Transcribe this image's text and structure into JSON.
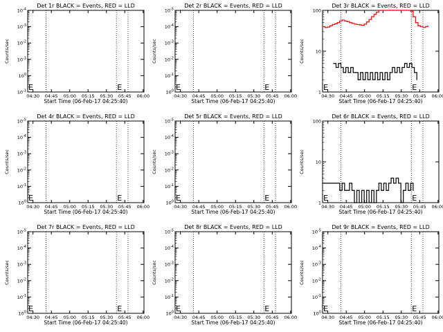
{
  "figure": {
    "x_tick_labels": [
      "04:30",
      "04:45",
      "05:00",
      "05:15",
      "05:30",
      "05:45",
      "06:00"
    ],
    "x_axis_label": "Start Time (06-Feb-17 04:25:40)",
    "y_axis_label": "Counts/sec",
    "marker_label": "E",
    "colors": {
      "events": "#000000",
      "lld": "#ff0000",
      "axes": "#000000",
      "background": "#ffffff"
    }
  },
  "chart_data": [
    {
      "type": "line",
      "title": "Det 1r BLACK = Events, RED = LLD",
      "ylabel": "Counts/sec",
      "y_scale": "log",
      "yticks": [
        {
          "base": "10",
          "exp": "-1"
        },
        {
          "base": "10",
          "exp": "0"
        },
        {
          "base": "10",
          "exp": "-1"
        },
        {
          "base": "10",
          "exp": "-2"
        },
        {
          "base": "10",
          "exp": "-3"
        },
        {
          "base": "10",
          "exp": "-4"
        }
      ],
      "ylim_decades": 6,
      "vlines_minutes": [
        15,
        72.5,
        82
      ],
      "series": [],
      "marker_visible": true
    },
    {
      "type": "line",
      "title": "Det 2r BLACK = Events, RED = LLD",
      "ylabel": "Counts/sec",
      "y_scale": "log",
      "yticks": [
        {
          "base": "10",
          "exp": "0"
        },
        {
          "base": "10",
          "exp": "-1"
        },
        {
          "base": "10",
          "exp": "-2"
        },
        {
          "base": "10",
          "exp": "-3"
        },
        {
          "base": "10",
          "exp": "-4"
        },
        {
          "base": "10",
          "exp": "-5"
        }
      ],
      "ylim_decades": 6,
      "vlines_minutes": [
        15,
        72.5,
        82
      ],
      "series": [],
      "marker_visible": true
    },
    {
      "type": "line",
      "title": "Det 3r BLACK = Events, RED = LLD",
      "ylabel": "Counts/sec",
      "y_scale": "log",
      "yticks": [
        {
          "base": "1",
          "exp": ""
        },
        {
          "base": "10",
          "exp": ""
        },
        {
          "base": "100",
          "exp": ""
        }
      ],
      "ylim": [
        1,
        100
      ],
      "vlines_minutes": [
        15,
        72.5,
        82
      ],
      "series": [
        {
          "color": "#ff0000",
          "x_minutes": [
            0,
            2,
            4,
            6,
            8,
            10,
            12,
            14,
            16,
            18,
            20,
            22,
            24,
            26,
            28,
            30,
            32,
            34,
            36,
            38,
            40,
            42,
            44,
            46,
            48,
            50,
            52,
            54,
            56,
            58,
            60,
            62,
            64,
            66,
            68,
            70,
            72,
            74,
            76,
            78,
            80,
            82,
            84,
            86
          ],
          "values": [
            40,
            38,
            39,
            42,
            45,
            47,
            50,
            55,
            58,
            55,
            53,
            50,
            48,
            46,
            45,
            44,
            43,
            46,
            52,
            60,
            70,
            80,
            90,
            100,
            110,
            118,
            118,
            116,
            114,
            112,
            110,
            108,
            105,
            110,
            115,
            115,
            95,
            70,
            50,
            42,
            40,
            38,
            40,
            42
          ]
        },
        {
          "color": "#000000",
          "x_minutes": [
            9,
            11,
            13,
            15,
            17,
            19,
            21,
            23,
            25,
            27,
            29,
            31,
            33,
            35,
            37,
            39,
            41,
            43,
            45,
            47,
            49,
            51,
            53,
            55,
            57,
            59,
            61,
            63,
            65,
            67,
            69,
            71,
            73,
            75,
            77
          ],
          "values": [
            5,
            4,
            5,
            4,
            3,
            4,
            3,
            4,
            3,
            3,
            2,
            3,
            2,
            3,
            2,
            3,
            2,
            3,
            2,
            3,
            2,
            3,
            2,
            3,
            4,
            3,
            4,
            3,
            4,
            5,
            4,
            5,
            4,
            3,
            2
          ]
        }
      ],
      "marker_visible": true
    },
    {
      "type": "line",
      "title": "Det 4r BLACK = Events, RED = LLD",
      "ylabel": "Counts/sec",
      "y_scale": "log",
      "yticks": [
        {
          "base": "10",
          "exp": "0"
        },
        {
          "base": "10",
          "exp": "-1"
        },
        {
          "base": "10",
          "exp": "-2"
        },
        {
          "base": "10",
          "exp": "-3"
        },
        {
          "base": "10",
          "exp": "-4"
        },
        {
          "base": "10",
          "exp": "-5"
        }
      ],
      "ylim_decades": 6,
      "vlines_minutes": [
        15,
        72.5,
        82
      ],
      "series": [],
      "marker_visible": true
    },
    {
      "type": "line",
      "title": "Det 5r BLACK = Events, RED = LLD",
      "ylabel": "Counts/sec",
      "y_scale": "log",
      "yticks": [
        {
          "base": "10",
          "exp": "0"
        },
        {
          "base": "10",
          "exp": "-1"
        },
        {
          "base": "10",
          "exp": "-2"
        },
        {
          "base": "10",
          "exp": "-3"
        },
        {
          "base": "10",
          "exp": "-4"
        },
        {
          "base": "10",
          "exp": "-5"
        }
      ],
      "ylim_decades": 6,
      "vlines_minutes": [
        15,
        72.5,
        82
      ],
      "series": [],
      "marker_visible": true
    },
    {
      "type": "line",
      "title": "Det 6r BLACK = Events, RED = LLD",
      "ylabel": "Counts/sec",
      "y_scale": "log",
      "yticks": [
        {
          "base": "1",
          "exp": ""
        },
        {
          "base": "10",
          "exp": ""
        },
        {
          "base": "100",
          "exp": ""
        }
      ],
      "ylim": [
        1,
        100
      ],
      "vlines_minutes": [
        15,
        72.5,
        82
      ],
      "series": [
        {
          "color": "#000000",
          "x_minutes": [
            0,
            2,
            4,
            6,
            8,
            10,
            12,
            14,
            16,
            18,
            20,
            22,
            24,
            26,
            28,
            30,
            32,
            34,
            36,
            38,
            40,
            42,
            44,
            46,
            48,
            50,
            52,
            54,
            56,
            58,
            60,
            62,
            64,
            66,
            68,
            70,
            72,
            74
          ],
          "values": [
            3,
            3,
            3,
            3,
            3,
            3,
            3,
            2,
            3,
            2,
            2,
            3,
            2,
            1,
            2,
            1,
            2,
            1,
            2,
            1,
            2,
            1,
            2,
            3,
            2,
            3,
            2,
            3,
            4,
            3,
            4,
            3,
            1,
            2,
            3,
            2,
            3,
            2
          ]
        }
      ],
      "marker_visible": true
    },
    {
      "type": "line",
      "title": "Det 7r BLACK = Events, RED = LLD",
      "ylabel": "Counts/sec",
      "y_scale": "log",
      "yticks": [
        {
          "base": "10",
          "exp": "0"
        },
        {
          "base": "10",
          "exp": "-1"
        },
        {
          "base": "10",
          "exp": "-2"
        },
        {
          "base": "10",
          "exp": "-3"
        },
        {
          "base": "10",
          "exp": "-4"
        },
        {
          "base": "10",
          "exp": "-5"
        }
      ],
      "ylim_decades": 6,
      "vlines_minutes": [
        15,
        72.5,
        82
      ],
      "series": [],
      "marker_visible": true
    },
    {
      "type": "line",
      "title": "Det 8r BLACK = Events, RED = LLD",
      "ylabel": "Counts/sec",
      "y_scale": "log",
      "yticks": [
        {
          "base": "10",
          "exp": "0"
        },
        {
          "base": "10",
          "exp": "-1"
        },
        {
          "base": "10",
          "exp": "-2"
        },
        {
          "base": "10",
          "exp": "-3"
        },
        {
          "base": "10",
          "exp": "-4"
        },
        {
          "base": "10",
          "exp": "-5"
        }
      ],
      "ylim_decades": 6,
      "vlines_minutes": [
        15,
        72.5,
        82
      ],
      "series": [],
      "marker_visible": true
    },
    {
      "type": "line",
      "title": "Det 9r BLACK = Events, RED = LLD",
      "ylabel": "Counts/sec",
      "y_scale": "log",
      "yticks": [
        {
          "base": "10",
          "exp": "0"
        },
        {
          "base": "10",
          "exp": "-1"
        },
        {
          "base": "10",
          "exp": "-2"
        },
        {
          "base": "10",
          "exp": "-3"
        },
        {
          "base": "10",
          "exp": "-4"
        },
        {
          "base": "10",
          "exp": "-5"
        }
      ],
      "ylim_decades": 6,
      "vlines_minutes": [
        15,
        72.5,
        82
      ],
      "series": [],
      "marker_visible": true
    }
  ]
}
